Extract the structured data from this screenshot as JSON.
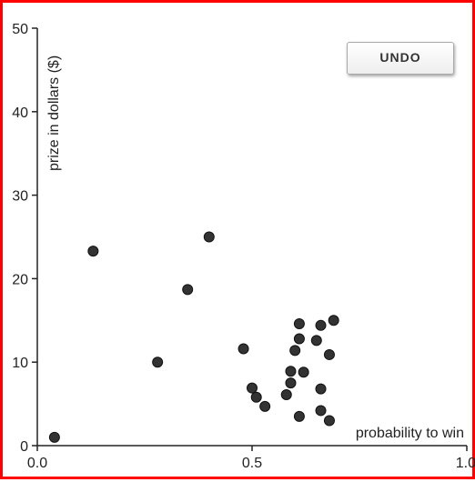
{
  "undo_label": "UNDO",
  "chart_data": {
    "type": "scatter",
    "xlabel": "probability to win",
    "ylabel": "prize in dollars ($)",
    "xlim": [
      0,
      1
    ],
    "ylim": [
      0,
      50
    ],
    "xticks": [
      "0.0",
      "0.5",
      "1.0"
    ],
    "xtick_values": [
      0,
      0.5,
      1
    ],
    "yticks": [
      "0",
      "10",
      "20",
      "30",
      "40",
      "50"
    ],
    "ytick_values": [
      0,
      10,
      20,
      30,
      40,
      50
    ],
    "grid": false,
    "point_color": "#333333",
    "points": [
      {
        "x": 0.04,
        "y": 1.0
      },
      {
        "x": 0.13,
        "y": 23.3
      },
      {
        "x": 0.28,
        "y": 10.0
      },
      {
        "x": 0.35,
        "y": 18.7
      },
      {
        "x": 0.4,
        "y": 25.0
      },
      {
        "x": 0.48,
        "y": 11.6
      },
      {
        "x": 0.5,
        "y": 6.9
      },
      {
        "x": 0.51,
        "y": 5.8
      },
      {
        "x": 0.53,
        "y": 4.7
      },
      {
        "x": 0.58,
        "y": 6.1
      },
      {
        "x": 0.59,
        "y": 8.9
      },
      {
        "x": 0.59,
        "y": 7.5
      },
      {
        "x": 0.6,
        "y": 11.4
      },
      {
        "x": 0.61,
        "y": 14.6
      },
      {
        "x": 0.61,
        "y": 12.8
      },
      {
        "x": 0.61,
        "y": 3.5
      },
      {
        "x": 0.62,
        "y": 8.8
      },
      {
        "x": 0.65,
        "y": 12.6
      },
      {
        "x": 0.66,
        "y": 14.4
      },
      {
        "x": 0.66,
        "y": 6.8
      },
      {
        "x": 0.66,
        "y": 4.2
      },
      {
        "x": 0.68,
        "y": 10.9
      },
      {
        "x": 0.68,
        "y": 3.0
      },
      {
        "x": 0.69,
        "y": 15.0
      }
    ]
  }
}
